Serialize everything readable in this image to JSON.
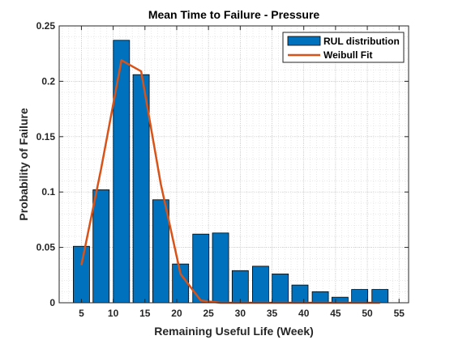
{
  "chart_data": {
    "type": "bar",
    "title": "Mean Time to Failure - Pressure",
    "xlabel": "Remaining Useful Life (Week)",
    "ylabel": "Probability of Failure",
    "xlim": [
      1.5,
      56.5
    ],
    "ylim": [
      0,
      0.25
    ],
    "xticks": [
      5,
      10,
      15,
      20,
      25,
      30,
      35,
      40,
      45,
      50,
      55
    ],
    "yticks": [
      0,
      0.05,
      0.1,
      0.15,
      0.2,
      0.25
    ],
    "ytick_labels": [
      "0",
      "0.05",
      "0.1",
      "0.15",
      "0.2",
      "0.25"
    ],
    "grid": true,
    "legend_position": "top-right",
    "series": [
      {
        "name": "RUL distribution",
        "type": "bar",
        "color": "#0072BD",
        "x": [
          5.0,
          8.1,
          11.3,
          14.4,
          17.5,
          20.6,
          23.8,
          26.9,
          30.0,
          33.2,
          36.3,
          39.4,
          42.6,
          45.7,
          48.8,
          52.0
        ],
        "values": [
          0.051,
          0.102,
          0.237,
          0.206,
          0.093,
          0.035,
          0.062,
          0.063,
          0.029,
          0.033,
          0.026,
          0.016,
          0.01,
          0.005,
          0.012,
          0.012
        ]
      },
      {
        "name": "Weibull Fit",
        "type": "line",
        "color": "#D95319",
        "x": [
          5.0,
          8.1,
          11.3,
          14.4,
          17.5,
          20.6,
          23.8,
          26.9,
          30.0,
          33.2,
          36.3,
          39.4,
          42.6,
          45.7,
          48.8,
          52.0
        ],
        "values": [
          0.034,
          0.121,
          0.219,
          0.209,
          0.107,
          0.026,
          0.002,
          0.0,
          0.0,
          0.0,
          0.0,
          0.0,
          0.0,
          0.0,
          0.0,
          0.0
        ]
      }
    ]
  }
}
